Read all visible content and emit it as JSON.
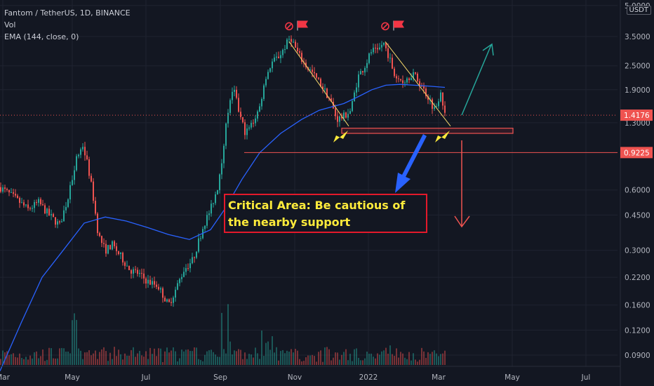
{
  "header": {
    "symbol_line": "Fantom / TetherUS, 1D, BINANCE",
    "vol_label": "Vol",
    "ema_label": "EMA (144, close, 0)",
    "currency": "USDT"
  },
  "annotation": {
    "text": "Critical Area: Be cautious of the nearby support"
  },
  "chart_data": {
    "type": "candlestick",
    "y_scale": "log",
    "y_ticks": [
      "5.0000",
      "3.5000",
      "2.5000",
      "1.9000",
      "1.3000",
      "0.6000",
      "0.4500",
      "0.3000",
      "0.2200",
      "0.1600",
      "0.1200",
      "0.0900"
    ],
    "y_tick_values": [
      5.0,
      3.5,
      2.5,
      1.9,
      1.3,
      0.6,
      0.45,
      0.3,
      0.22,
      0.16,
      0.12,
      0.09
    ],
    "x_ticks": [
      "Mar",
      "May",
      "Jul",
      "Sep",
      "Nov",
      "2022",
      "Mar",
      "May",
      "Jul"
    ],
    "price_labels": [
      {
        "value": 1.4176,
        "text": "1.4176",
        "color": "#ef5350"
      },
      {
        "value": 0.9225,
        "text": "0.9225",
        "color": "#ef5350"
      }
    ],
    "close_path": [
      [
        0,
        0.62
      ],
      [
        20,
        0.55
      ],
      [
        40,
        0.48
      ],
      [
        55,
        0.52
      ],
      [
        70,
        0.45
      ],
      [
        85,
        0.4
      ],
      [
        97,
        0.55
      ],
      [
        108,
        0.85
      ],
      [
        118,
        1.0
      ],
      [
        125,
        0.8
      ],
      [
        132,
        0.58
      ],
      [
        140,
        0.36
      ],
      [
        150,
        0.3
      ],
      [
        160,
        0.32
      ],
      [
        172,
        0.28
      ],
      [
        185,
        0.24
      ],
      [
        197,
        0.23
      ],
      [
        210,
        0.21
      ],
      [
        225,
        0.2
      ],
      [
        240,
        0.16
      ],
      [
        250,
        0.19
      ],
      [
        262,
        0.24
      ],
      [
        275,
        0.27
      ],
      [
        290,
        0.4
      ],
      [
        300,
        0.48
      ],
      [
        310,
        0.62
      ],
      [
        318,
        0.95
      ],
      [
        325,
        1.5
      ],
      [
        333,
        1.9
      ],
      [
        342,
        1.4
      ],
      [
        350,
        1.15
      ],
      [
        360,
        1.3
      ],
      [
        370,
        1.55
      ],
      [
        378,
        2.2
      ],
      [
        388,
        2.6
      ],
      [
        398,
        2.8
      ],
      [
        408,
        3.2
      ],
      [
        414,
        3.5
      ],
      [
        422,
        3.0
      ],
      [
        432,
        2.6
      ],
      [
        445,
        2.3
      ],
      [
        458,
        2.0
      ],
      [
        470,
        1.7
      ],
      [
        480,
        1.35
      ],
      [
        490,
        1.4
      ],
      [
        500,
        1.5
      ],
      [
        510,
        2.2
      ],
      [
        520,
        2.5
      ],
      [
        530,
        3.0
      ],
      [
        538,
        2.9
      ],
      [
        546,
        3.3
      ],
      [
        554,
        2.8
      ],
      [
        563,
        2.2
      ],
      [
        575,
        2.1
      ],
      [
        588,
        2.3
      ],
      [
        600,
        2.0
      ],
      [
        612,
        1.7
      ],
      [
        620,
        1.5
      ],
      [
        628,
        1.9
      ],
      [
        634,
        1.4176
      ]
    ],
    "ema_path": [
      [
        0,
        0.075
      ],
      [
        30,
        0.13
      ],
      [
        60,
        0.22
      ],
      [
        90,
        0.3
      ],
      [
        120,
        0.41
      ],
      [
        150,
        0.44
      ],
      [
        180,
        0.42
      ],
      [
        210,
        0.39
      ],
      [
        240,
        0.36
      ],
      [
        270,
        0.34
      ],
      [
        300,
        0.38
      ],
      [
        320,
        0.48
      ],
      [
        345,
        0.68
      ],
      [
        370,
        0.92
      ],
      [
        400,
        1.15
      ],
      [
        430,
        1.35
      ],
      [
        455,
        1.5
      ],
      [
        470,
        1.55
      ],
      [
        490,
        1.62
      ],
      [
        510,
        1.75
      ],
      [
        530,
        1.9
      ],
      [
        550,
        2.0
      ],
      [
        570,
        2.02
      ],
      [
        590,
        2.0
      ],
      [
        610,
        1.98
      ],
      [
        634,
        1.95
      ]
    ],
    "support_zone": {
      "low": 1.15,
      "high": 1.22
    },
    "support_line": 0.9225,
    "volume_note": "volume histogram shown at bottom"
  },
  "colors": {
    "background": "#131722",
    "up": "#26a69a",
    "down": "#ef5350",
    "ema": "#2962ff",
    "grid": "#1f2330",
    "annotation_border": "#e3192b",
    "annotation_text": "#ffeb3b",
    "arrow_up": "#26a69a",
    "arrow_down": "#ef5350",
    "arrow_blue": "#2962ff",
    "marker_yellow": "#ffeb3b",
    "flag_red": "#f23645"
  }
}
